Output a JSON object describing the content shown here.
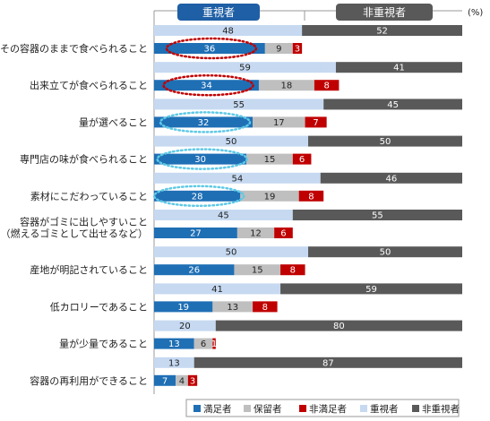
{
  "chart_data": {
    "type": "bar",
    "orientation": "horizontal",
    "stacked": true,
    "xlim": [
      0,
      100
    ],
    "unit": "(%)",
    "header": {
      "importance": "重視者",
      "non_importance": "非重視者"
    },
    "categories": [
      [
        "その容器のままで食べられること"
      ],
      [
        "出来立てが食べられること"
      ],
      [
        "量が選べること"
      ],
      [
        "専門店の味が食べられること"
      ],
      [
        "素材にこだわっていること"
      ],
      [
        "容器がゴミに出しやすいこと",
        "（燃えるゴミとして出せるなど）"
      ],
      [
        "産地が明記されていること"
      ],
      [
        "低カロリーであること"
      ],
      [
        "量が少量であること"
      ],
      [
        "容器の再利用ができること"
      ]
    ],
    "importance_series": [
      {
        "name": "重視者",
        "color": "#c6d9f1",
        "values": [
          48,
          59,
          55,
          50,
          54,
          45,
          50,
          41,
          20,
          13
        ]
      },
      {
        "name": "非重視者",
        "color": "#595959",
        "values": [
          52,
          41,
          45,
          50,
          46,
          55,
          50,
          59,
          80,
          87
        ]
      }
    ],
    "satisfaction_series": [
      {
        "name": "満足者",
        "color": "#1f6fb5",
        "values": [
          36,
          34,
          32,
          30,
          28,
          27,
          26,
          19,
          13,
          7
        ]
      },
      {
        "name": "保留者",
        "color": "#bfbfbf",
        "values": [
          9,
          18,
          17,
          15,
          19,
          12,
          15,
          13,
          6,
          4
        ]
      },
      {
        "name": "非満足者",
        "color": "#c00000",
        "values": [
          3,
          8,
          7,
          6,
          8,
          6,
          8,
          8,
          1,
          3
        ]
      }
    ],
    "legend": [
      "満足者",
      "保留者",
      "非満足者",
      "重視者",
      "非重視者"
    ],
    "highlights": [
      {
        "category_index": 0,
        "style": "red-dotted"
      },
      {
        "category_index": 1,
        "style": "red-dotted"
      },
      {
        "category_index": 2,
        "style": "cyan-dotted"
      },
      {
        "category_index": 3,
        "style": "cyan-dotted"
      },
      {
        "category_index": 4,
        "style": "cyan-dotted"
      }
    ]
  }
}
